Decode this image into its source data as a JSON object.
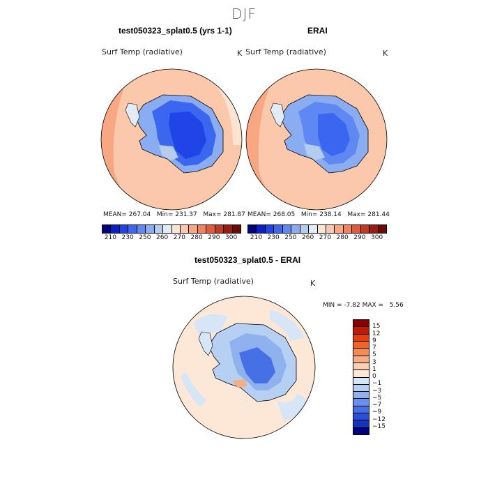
{
  "page_title": "DJF",
  "colors": {
    "temp_scale": [
      "#000080",
      "#0a1fc8",
      "#1f45e6",
      "#3a66f0",
      "#5f88f2",
      "#8aacf0",
      "#b4cdee",
      "#e2ecf6",
      "#fde4d2",
      "#fbc8ab",
      "#f9a683",
      "#f3835e",
      "#e25a3a",
      "#c33a22",
      "#9c1b10",
      "#6e0a06"
    ],
    "diff_scale": [
      "#8a0000",
      "#c01a00",
      "#e83d0c",
      "#f46428",
      "#f58a55",
      "#f7ad84",
      "#fbcfb1",
      "#fde7d6",
      "#d6e6f7",
      "#b6d0f3",
      "#8fb2ef",
      "#6890ec",
      "#4570e6",
      "#2a4fda",
      "#1533bc",
      "#000080"
    ]
  },
  "panels": [
    {
      "title": "test050323_splat0.5 (yrs 1-1)",
      "var_label": "Surf Temp (radiative)",
      "unit": "K",
      "stats": {
        "mean_label": "MEAN=",
        "mean": "267.04",
        "min_label": "Min=",
        "min": "231.37",
        "max_label": "Max=",
        "max": "281.87"
      }
    },
    {
      "title": "ERAI",
      "var_label": "Surf Temp (radiative)",
      "unit": "K",
      "stats": {
        "mean_label": "MEAN=",
        "mean": "268.05",
        "min_label": "Min=",
        "min": "238.14",
        "max_label": "Max=",
        "max": "281.44"
      }
    }
  ],
  "temp_ticks": [
    "210",
    "230",
    "250",
    "260",
    "270",
    "280",
    "290",
    "300"
  ],
  "diff_panel": {
    "title": "test050323_splat0.5 - ERAI",
    "var_label": "Surf Temp (radiative)",
    "unit": "K",
    "minmax": {
      "min_label": "MIN =",
      "min": "-7.82",
      "max_label": "MAX =",
      "max": "5.56"
    }
  },
  "diff_ticks": [
    "15",
    "12",
    "9",
    "7",
    "5",
    "3",
    "1",
    "0",
    "−1",
    "−3",
    "−5",
    "−7",
    "−9",
    "−12",
    "−15"
  ],
  "chart_data": [
    {
      "type": "heatmap",
      "title": "test050323_splat0.5 (yrs 1-1)",
      "variable": "Surf Temp (radiative)",
      "units": "K",
      "projection": "south polar stereographic",
      "mean": 267.04,
      "min": 231.37,
      "max": 281.87,
      "colorbar_ticks": [
        210,
        230,
        250,
        260,
        270,
        280,
        290,
        300
      ]
    },
    {
      "type": "heatmap",
      "title": "ERAI",
      "variable": "Surf Temp (radiative)",
      "units": "K",
      "projection": "south polar stereographic",
      "mean": 268.05,
      "min": 238.14,
      "max": 281.44,
      "colorbar_ticks": [
        210,
        230,
        250,
        260,
        270,
        280,
        290,
        300
      ]
    },
    {
      "type": "heatmap",
      "title": "test050323_splat0.5 - ERAI",
      "variable": "Surf Temp (radiative)",
      "units": "K",
      "projection": "south polar stereographic",
      "min": -7.82,
      "max": 5.56,
      "colorbar_ticks": [
        15,
        12,
        9,
        7,
        5,
        3,
        1,
        0,
        -1,
        -3,
        -5,
        -7,
        -9,
        -12,
        -15
      ]
    }
  ]
}
